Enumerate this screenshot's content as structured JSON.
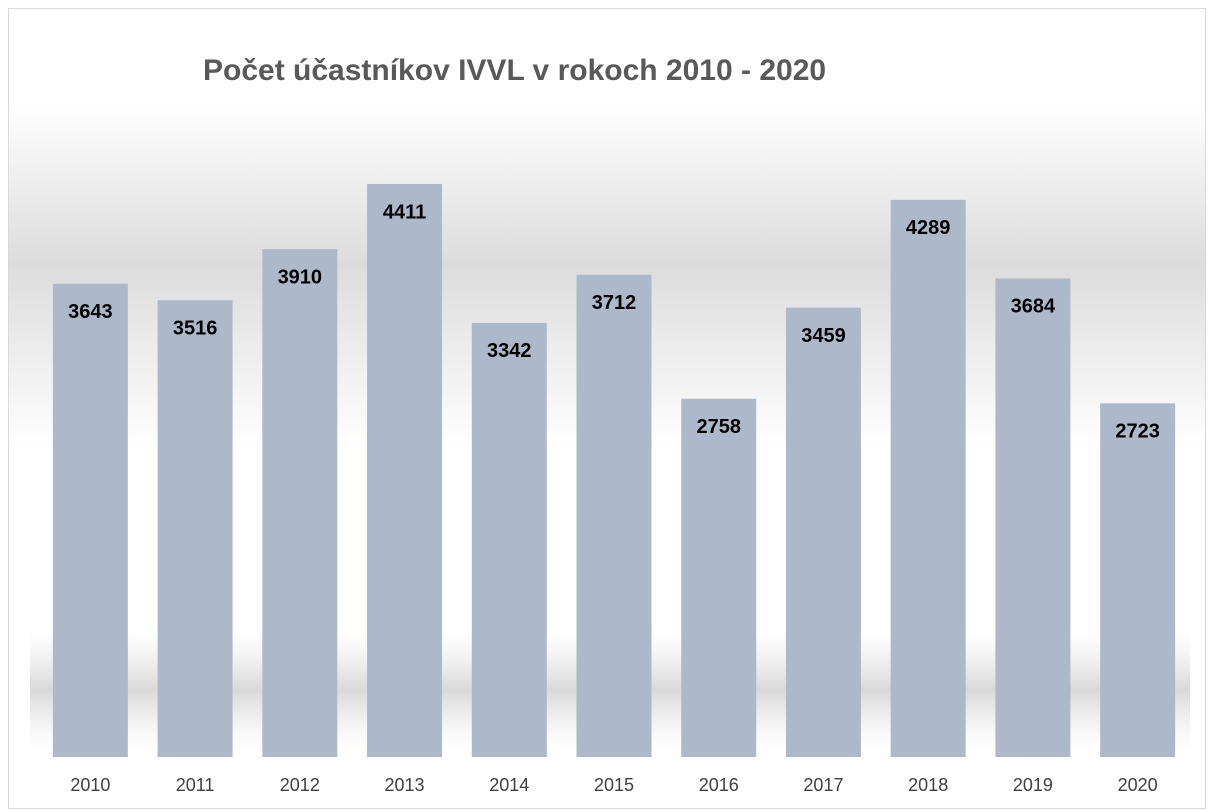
{
  "chart_data": {
    "type": "bar",
    "title": "Počet účastníkov IVVL v rokoch 2010 - 2020",
    "categories": [
      "2010",
      "2011",
      "2012",
      "2013",
      "2014",
      "2015",
      "2016",
      "2017",
      "2018",
      "2019",
      "2020"
    ],
    "values": [
      3643,
      3516,
      3910,
      4411,
      3342,
      3712,
      2758,
      3459,
      4289,
      3684,
      2723
    ],
    "color": "#adb9ca"
  }
}
